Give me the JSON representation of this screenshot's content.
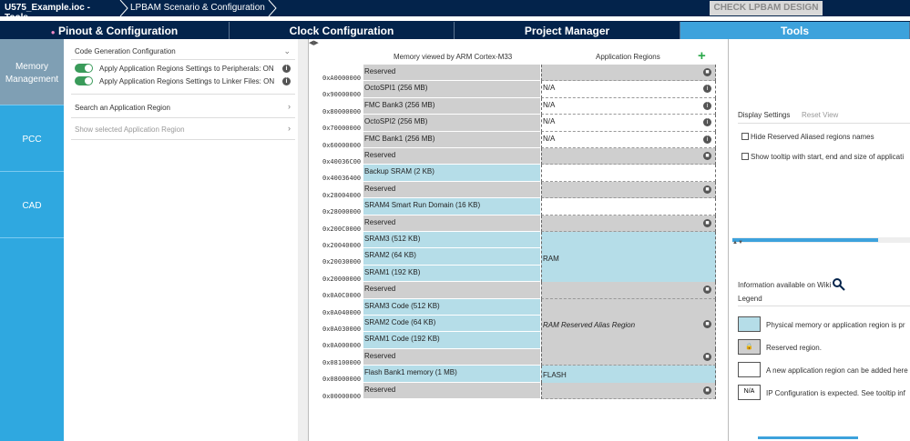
{
  "breadcrumb": {
    "file": "U575_Example.ioc - Tools",
    "section": "LPBAM Scenario & Configuration"
  },
  "check_button": "CHECK LPBAM DESIGN",
  "tabs": [
    "Pinout & Configuration",
    "Clock Configuration",
    "Project Manager",
    "Tools"
  ],
  "sidenav": [
    "Memory\nManagement",
    "PCC",
    "CAD"
  ],
  "left": {
    "code_gen_title": "Code Generation Configuration",
    "toggle1": "Apply Application Regions Settings to Peripherals: ON",
    "toggle2": "Apply Application Regions Settings to Linker Files: ON",
    "search": "Search an Application Region",
    "show_selected": "Show selected Application Region"
  },
  "center": {
    "header_memory": "Memory viewed by ARM Cortex-M33",
    "header_app": "Application Regions",
    "rows": [
      {
        "addr": "0xA0000000",
        "name": "Reserved",
        "app": "",
        "na": ""
      },
      {
        "addr": "0x90000000",
        "name": "OctoSPI1 (256 MB)",
        "app": "N/A",
        "na": ""
      },
      {
        "addr": "0x80000000",
        "name": "FMC Bank3 (256 MB)",
        "app": "N/A",
        "na": ""
      },
      {
        "addr": "0x70000000",
        "name": "OctoSPI2 (256 MB)",
        "app": "N/A",
        "na": ""
      },
      {
        "addr": "0x60000000",
        "name": "FMC Bank1 (256 MB)",
        "app": "N/A",
        "na": ""
      },
      {
        "addr": "0x40036C00",
        "name": "Reserved",
        "app": "",
        "na": ""
      },
      {
        "addr": "0x40036400",
        "name": "Backup SRAM (2 KB)",
        "app": "",
        "na": ""
      },
      {
        "addr": "0x28004000",
        "name": "Reserved",
        "app": "",
        "na": ""
      },
      {
        "addr": "0x28000000",
        "name": "SRAM4 Smart Run Domain (16 KB)",
        "app": "",
        "na": ""
      },
      {
        "addr": "0x200C0000",
        "name": "Reserved",
        "app": "",
        "na": ""
      },
      {
        "addr": "0x20040000",
        "name": "SRAM3 (512 KB)",
        "app": "",
        "na": ""
      },
      {
        "addr": "0x20030000",
        "name": "SRAM2 (64 KB)",
        "app": "RAM",
        "na": ""
      },
      {
        "addr": "0x20000000",
        "name": "SRAM1 (192 KB)",
        "app": "",
        "na": ""
      },
      {
        "addr": "0x0A0C0000",
        "name": "Reserved",
        "app": "",
        "na": ""
      },
      {
        "addr": "0x0A040000",
        "name": "SRAM3 Code (512 KB)",
        "app": "",
        "na": ""
      },
      {
        "addr": "0x0A030000",
        "name": "SRAM2 Code (64 KB)",
        "app": "RAM Reserved Alias Region",
        "na": ""
      },
      {
        "addr": "0x0A000000",
        "name": "SRAM1 Code (192 KB)",
        "app": "",
        "na": ""
      },
      {
        "addr": "0x08100000",
        "name": "Reserved",
        "app": "",
        "na": ""
      },
      {
        "addr": "0x08000000",
        "name": "Flash Bank1 memory (1 MB)",
        "app": "FLASH",
        "na": ""
      },
      {
        "addr": "0x00000000",
        "name": "Reserved",
        "app": "",
        "na": ""
      }
    ]
  },
  "right": {
    "display_settings": "Display Settings",
    "reset_view": "Reset View",
    "opt1": "Hide Reserved Aliased regions names",
    "opt2": "Show tooltip with start, end and size of applicati",
    "wiki": "Information available on Wiki",
    "legend_title": "Legend",
    "legend": [
      "Physical memory or application region is pr",
      "Reserved region.",
      "A new application region can be added here",
      "IP Configuration is expected. See tooltip inf"
    ],
    "na_label": "N/A"
  },
  "colors": {
    "navy": "#03234b",
    "accent": "#3da2dc",
    "sidenav": "#2fa8e0",
    "mem_blue": "#b5dde8",
    "reserved": "#cfcfcf",
    "toggle_green": "#3a9b5a"
  }
}
